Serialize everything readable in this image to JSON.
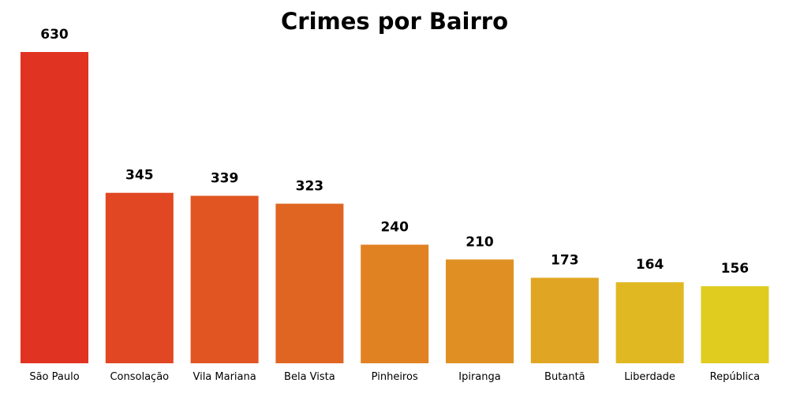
{
  "chart_data": {
    "type": "bar",
    "title": "Crimes por Bairro",
    "xlabel": "",
    "ylabel": "",
    "categories": [
      "São Paulo",
      "Consolação",
      "Vila Mariana",
      "Bela Vista",
      "Pinheiros",
      "Ipiranga",
      "Butantã",
      "Liberdade",
      "República"
    ],
    "values": [
      630,
      345,
      339,
      323,
      240,
      210,
      173,
      164,
      156
    ],
    "value_labels": [
      "630",
      "345",
      "339",
      "323",
      "240",
      "210",
      "173",
      "164",
      "156"
    ],
    "colors": [
      "#e03322",
      "#e04722",
      "#e05522",
      "#e06522",
      "#e08122",
      "#e09022",
      "#e0a522",
      "#e0b822",
      "#dfcc1f"
    ],
    "ylim": [
      0,
      630
    ],
    "grid": false,
    "legend": "none"
  }
}
